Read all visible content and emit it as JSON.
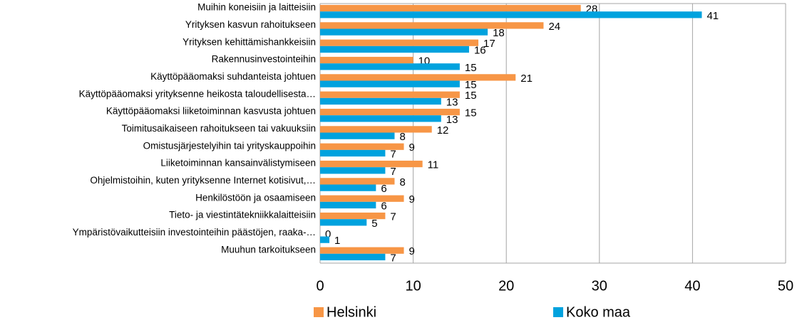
{
  "chart_data": {
    "type": "barh",
    "categories": [
      "Muihin koneisiin ja laitteisiin",
      "Yrityksen kasvun rahoitukseen",
      "Yrityksen kehittämishankkeisiin",
      "Rakennusinvestointeihin",
      "Käyttöpääomaksi suhdanteista johtuen",
      "Käyttöpääomaksi yrityksenne heikosta taloudellisesta…",
      "Käyttöpääomaksi liiketoiminnan kasvusta johtuen",
      "Toimitusaikaiseen rahoitukseen tai vakuuksiin",
      "Omistusjärjestelyihin tai yrityskauppoihin",
      "Liiketoiminnan kansainvälistymiseen",
      "Ohjelmistoihin, kuten yrityksenne Internet kotisivut,…",
      "Henkilöstöön ja osaamiseen",
      "Tieto- ja viestintätekniikkalaitteisiin",
      "Ympäristövaikutteisiin investointeihin päästöjen, raaka-…",
      "Muuhun tarkoitukseen"
    ],
    "series": [
      {
        "name": "Helsinki",
        "color": "#f79646",
        "values": [
          28,
          24,
          17,
          10,
          21,
          15,
          15,
          12,
          9,
          11,
          8,
          9,
          7,
          0,
          9
        ]
      },
      {
        "name": "Koko maa",
        "color": "#00a2de",
        "values": [
          41,
          18,
          16,
          15,
          15,
          13,
          13,
          8,
          7,
          7,
          6,
          6,
          5,
          1,
          7
        ]
      }
    ],
    "xlim": [
      0,
      50
    ],
    "xticks": [
      0,
      10,
      20,
      30,
      40,
      50
    ],
    "grid": true,
    "legend": "bottom"
  }
}
